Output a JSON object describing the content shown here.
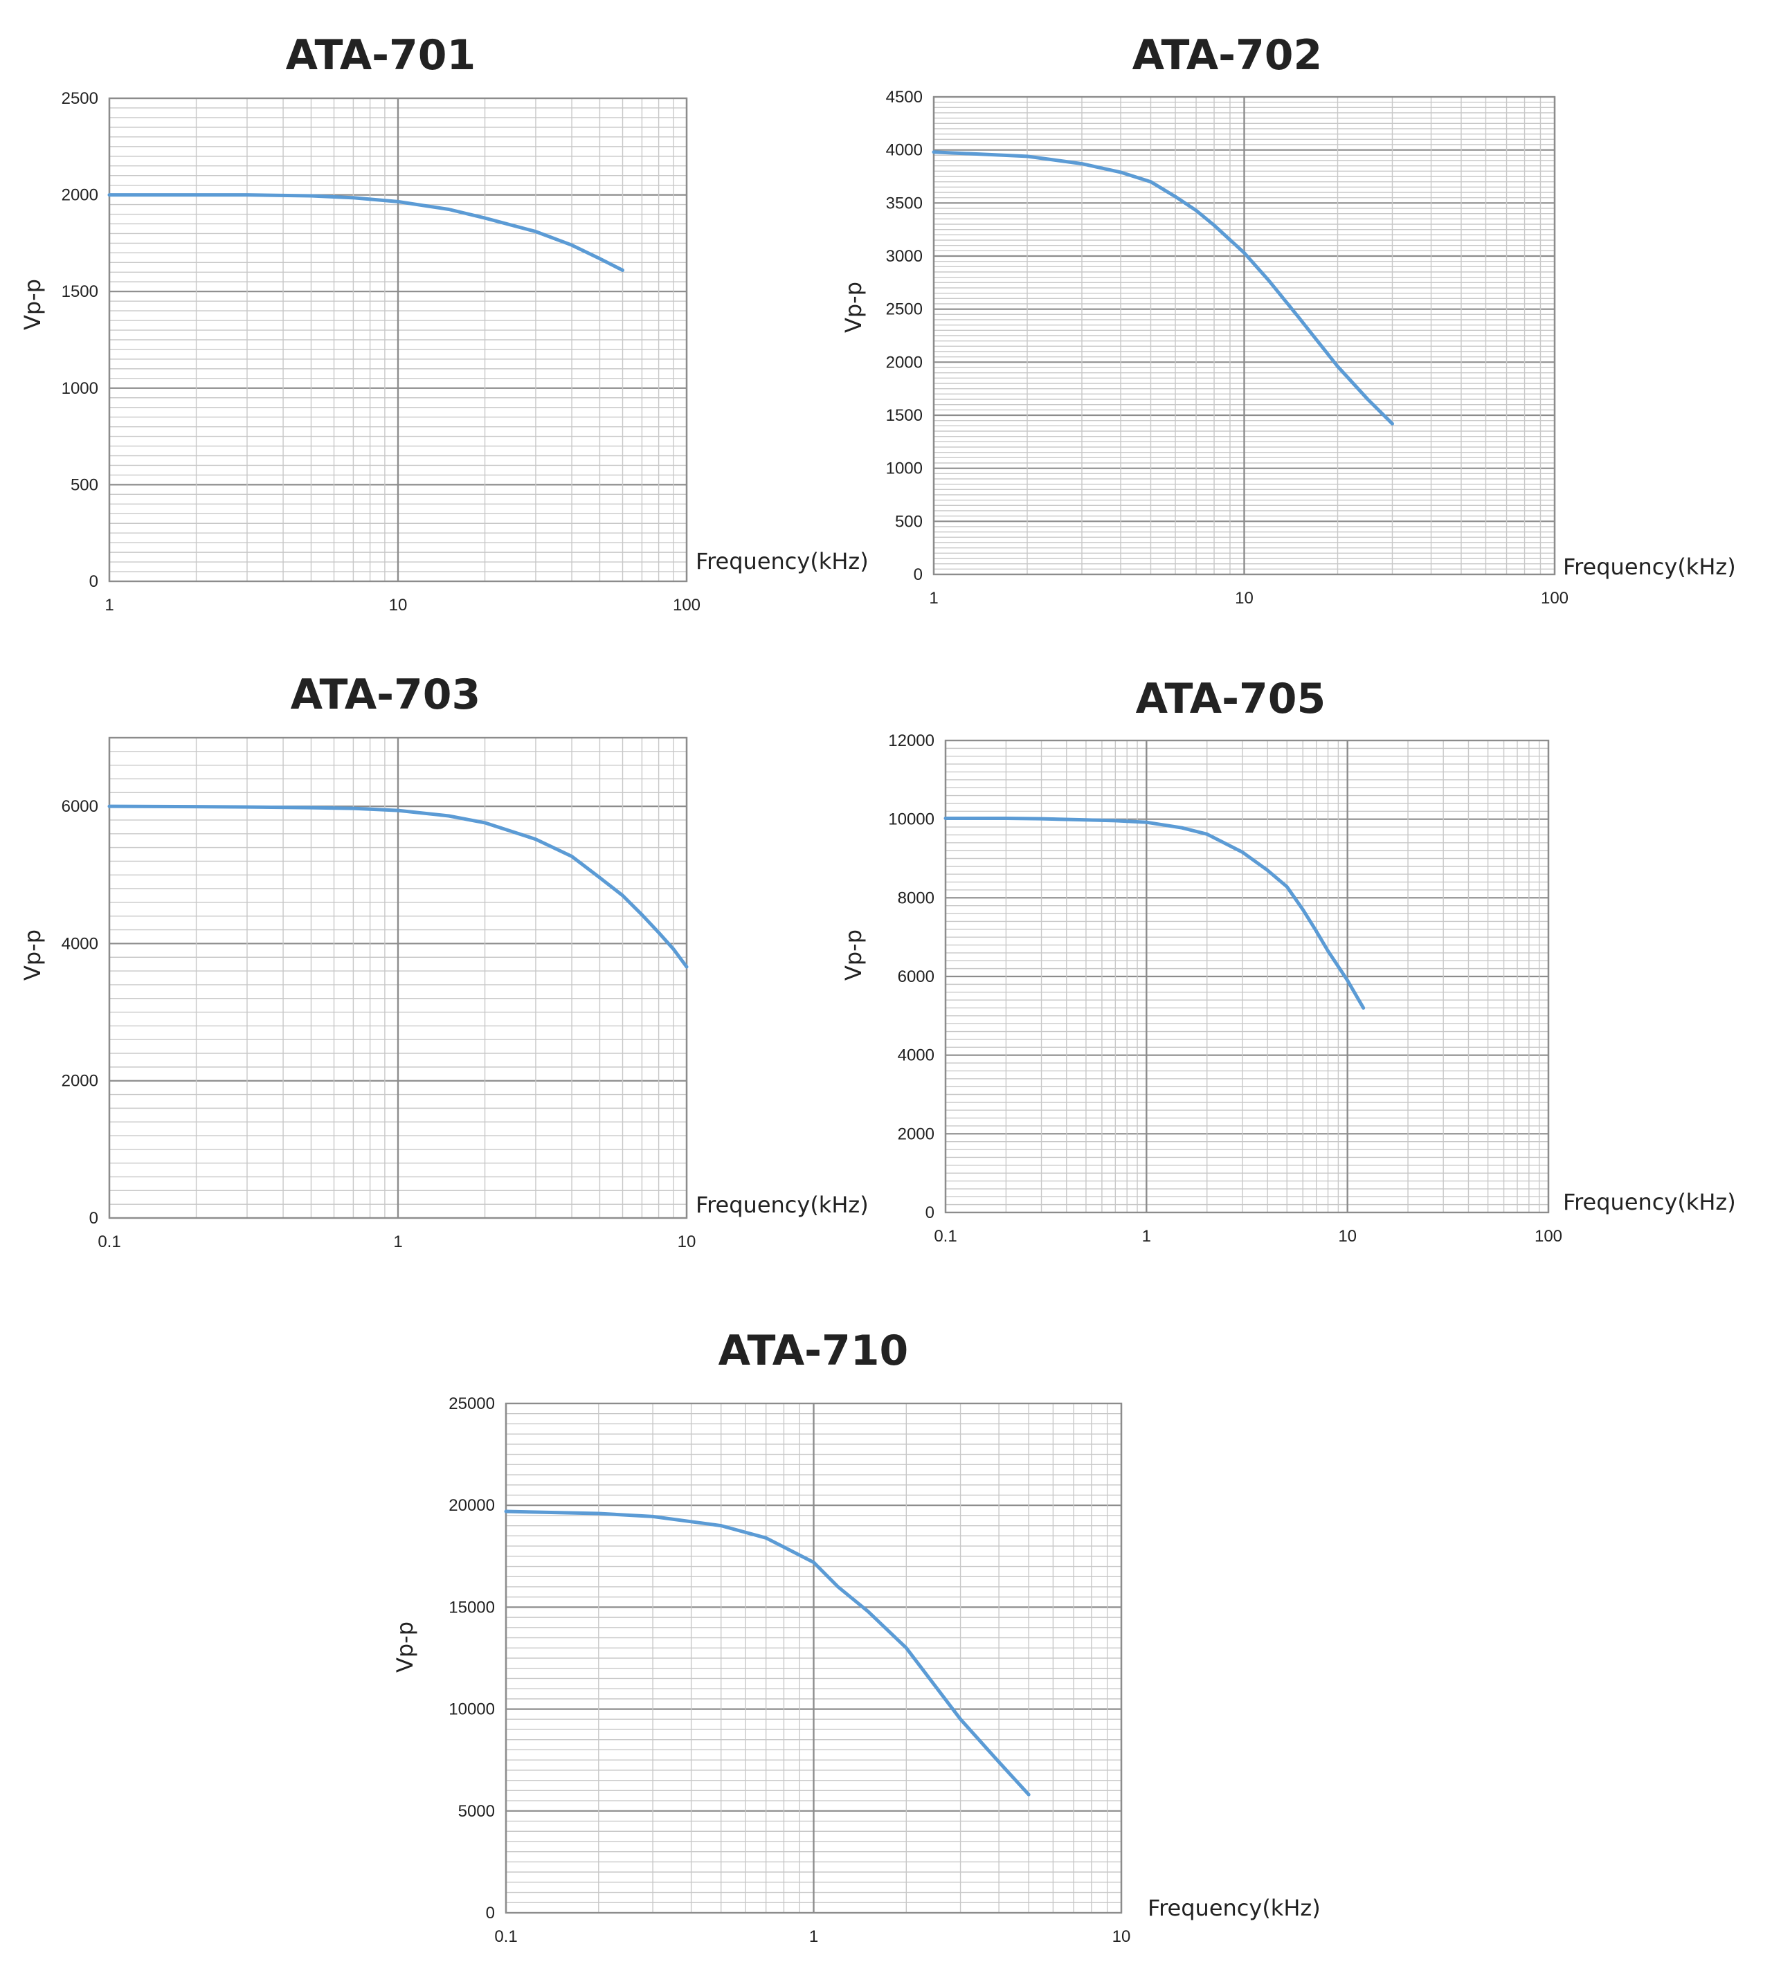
{
  "chart_data": [
    {
      "type": "line",
      "title": "ATA-701",
      "xlabel": "Frequency(kHz)",
      "ylabel": "Vp-p",
      "xscale": "log",
      "xlim": [
        1,
        100
      ],
      "ylim": [
        0,
        2500
      ],
      "xticks": [
        "1",
        "10",
        "100"
      ],
      "yticks": [
        "0",
        "500",
        "1000",
        "1500",
        "2000",
        "2500"
      ],
      "grid": true,
      "line_color": "#5b9bd5",
      "series": [
        {
          "x": [
            1,
            2,
            3,
            5,
            7,
            10,
            15,
            20,
            30,
            40,
            50,
            60
          ],
          "y": [
            2000,
            2000,
            2000,
            1995,
            1985,
            1965,
            1925,
            1880,
            1810,
            1740,
            1670,
            1610
          ]
        }
      ]
    },
    {
      "type": "line",
      "title": "ATA-702",
      "xlabel": "Frequency(kHz)",
      "ylabel": "Vp-p",
      "xscale": "log",
      "xlim": [
        1,
        100
      ],
      "ylim": [
        0,
        4500
      ],
      "xticks": [
        "1",
        "10",
        "100"
      ],
      "yticks": [
        "0",
        "500",
        "1000",
        "1500",
        "2000",
        "2500",
        "3000",
        "3500",
        "4000",
        "4500"
      ],
      "grid": true,
      "line_color": "#5b9bd5",
      "series": [
        {
          "x": [
            1,
            2,
            3,
            4,
            5,
            6,
            7,
            8,
            10,
            12,
            15,
            20,
            25,
            30
          ],
          "y": [
            3980,
            3940,
            3870,
            3790,
            3700,
            3560,
            3430,
            3290,
            3030,
            2770,
            2420,
            1960,
            1650,
            1420
          ]
        }
      ]
    },
    {
      "type": "line",
      "title": "ATA-703",
      "xlabel": "Frequency(kHz)",
      "ylabel": "Vp-p",
      "xscale": "log",
      "xlim": [
        0.1,
        10
      ],
      "ylim": [
        0,
        7000
      ],
      "xticks": [
        "0.1",
        "1",
        "10"
      ],
      "yticks": [
        "0",
        "2000",
        "4000",
        "6000"
      ],
      "grid": true,
      "line_color": "#5b9bd5",
      "series": [
        {
          "x": [
            0.1,
            0.2,
            0.3,
            0.5,
            0.7,
            1,
            1.5,
            2,
            3,
            4,
            5,
            6,
            7,
            8,
            9,
            10
          ],
          "y": [
            6000,
            5995,
            5990,
            5980,
            5970,
            5940,
            5860,
            5760,
            5520,
            5270,
            4960,
            4700,
            4420,
            4160,
            3920,
            3660
          ]
        }
      ]
    },
    {
      "type": "line",
      "title": "ATA-705",
      "xlabel": "Frequency(kHz)",
      "ylabel": "Vp-p",
      "xscale": "log",
      "xlim": [
        0.1,
        100
      ],
      "ylim": [
        0,
        12000
      ],
      "xticks": [
        "0.1",
        "1",
        "10",
        "100"
      ],
      "yticks": [
        "0",
        "2000",
        "4000",
        "6000",
        "8000",
        "10000",
        "12000"
      ],
      "grid": true,
      "line_color": "#5b9bd5",
      "series": [
        {
          "x": [
            0.1,
            0.2,
            0.3,
            0.5,
            0.7,
            1,
            1.5,
            2,
            3,
            4,
            5,
            6,
            7,
            8,
            10,
            12
          ],
          "y": [
            10020,
            10020,
            10010,
            9980,
            9960,
            9920,
            9780,
            9620,
            9160,
            8700,
            8280,
            7700,
            7150,
            6650,
            5900,
            5200
          ]
        }
      ]
    },
    {
      "type": "line",
      "title": "ATA-710",
      "xlabel": "Frequency(kHz)",
      "ylabel": "Vp-p",
      "xscale": "log",
      "xlim": [
        0.1,
        10
      ],
      "ylim": [
        0,
        25000
      ],
      "xticks": [
        "0.1",
        "1",
        "10"
      ],
      "yticks": [
        "0",
        "5000",
        "10000",
        "15000",
        "20000",
        "25000"
      ],
      "grid": true,
      "line_color": "#5b9bd5",
      "series": [
        {
          "x": [
            0.1,
            0.2,
            0.3,
            0.4,
            0.5,
            0.7,
            1,
            1.2,
            1.5,
            2,
            3,
            4,
            5
          ],
          "y": [
            19700,
            19600,
            19450,
            19200,
            19000,
            18400,
            17200,
            16000,
            14800,
            13000,
            9500,
            7400,
            5800
          ]
        }
      ]
    }
  ]
}
